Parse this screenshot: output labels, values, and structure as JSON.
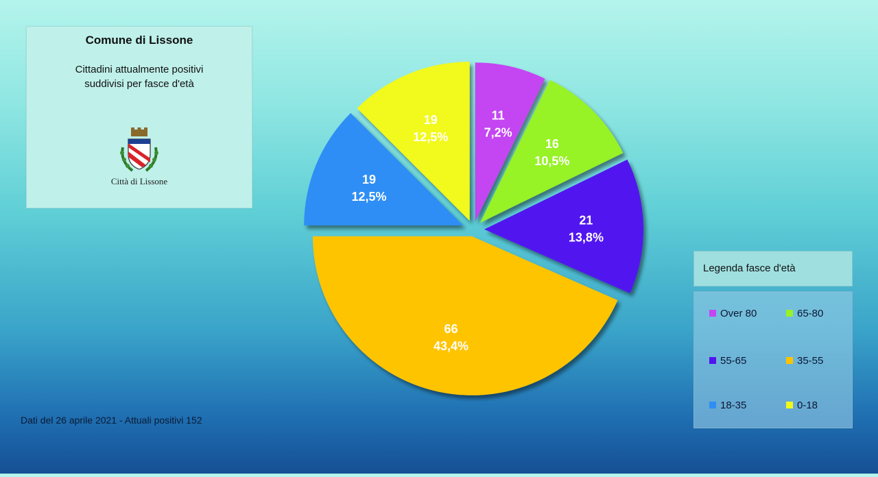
{
  "title_box": {
    "title": "Comune di Lissone",
    "subtitle_line1": "Cittadini attualmente positivi",
    "subtitle_line2": "suddivisi per fasce d'età",
    "city_name": "Città di Lissone"
  },
  "footer": "Dati del 26 aprile 2021 - Attuali positivi 152",
  "legend": {
    "title": "Legenda fasce d'età"
  },
  "chart_data": {
    "type": "pie",
    "title": "",
    "categories": [
      "Over 80",
      "65-80",
      "55-65",
      "35-55",
      "18-35",
      "0-18"
    ],
    "values": [
      11,
      16,
      21,
      66,
      19,
      19
    ],
    "percent_labels": [
      "7,2%",
      "10,5%",
      "13,8%",
      "43,4%",
      "12,5%",
      "12,5%"
    ],
    "colors": [
      "#c445f2",
      "#97f226",
      "#5114f0",
      "#ffc400",
      "#2f8ef5",
      "#f2f91a"
    ],
    "legend_position": "right",
    "exploded": true,
    "start_angle": "12 o'clock, clockwise"
  }
}
